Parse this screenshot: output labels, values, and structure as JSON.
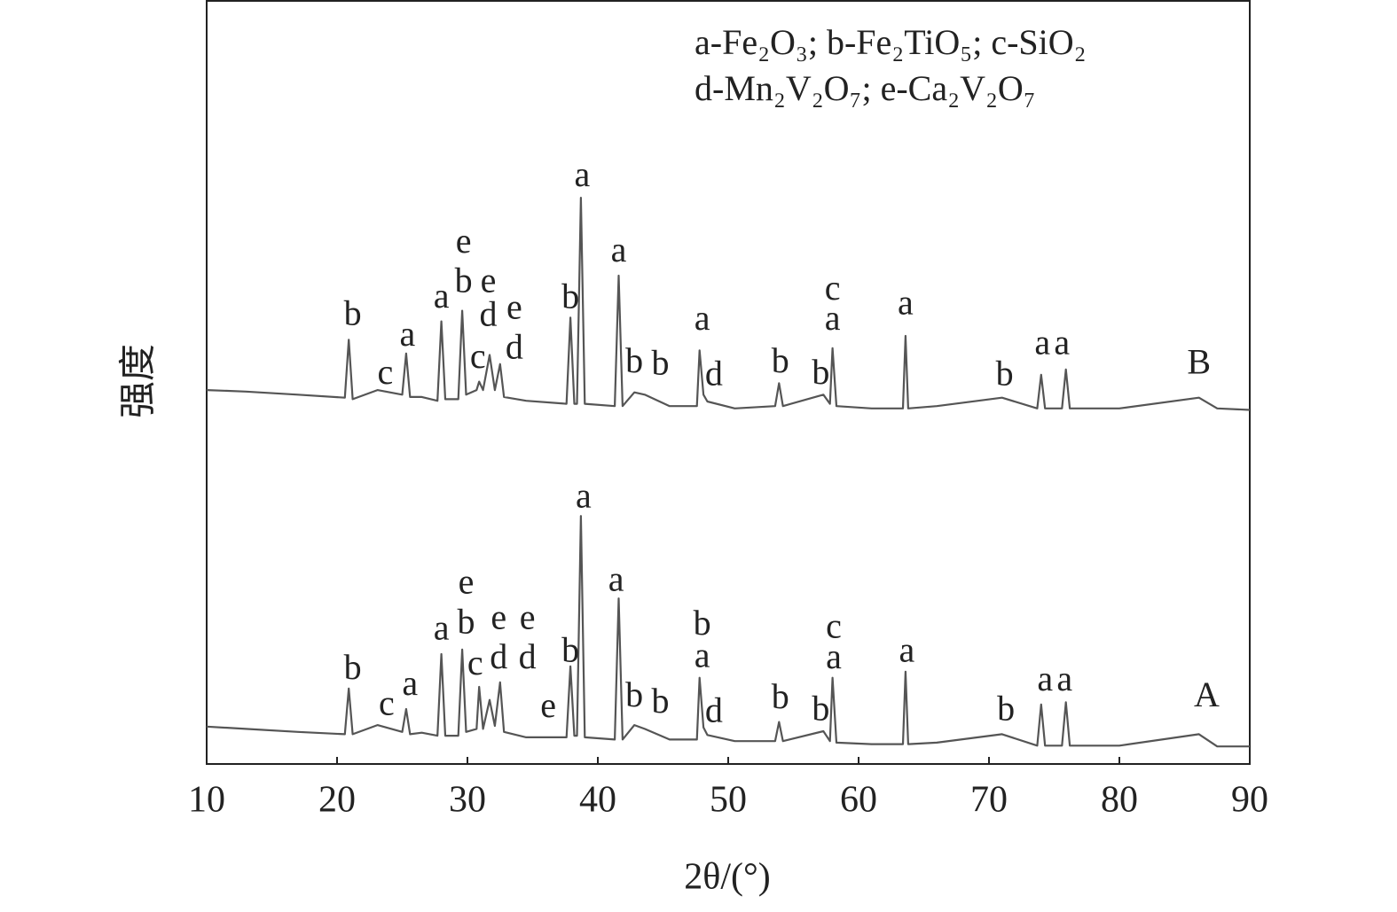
{
  "chart_data": {
    "type": "line",
    "xlabel": "2θ/(°)",
    "ylabel": "强度",
    "legend": [
      "a-Fe₂O₃; b-Fe₂TiO₅; c-SiO₂",
      "d-Mn₂V₂O₇; e-Ca₂V₂O₇"
    ],
    "xlim": [
      10,
      90
    ],
    "xticks": [
      10,
      20,
      30,
      40,
      50,
      60,
      70,
      80,
      90
    ],
    "ylim": [
      0,
      100
    ],
    "x": [
      10,
      13,
      17,
      20.6,
      20.9,
      21.2,
      23.1,
      25.0,
      25.3,
      25.6,
      26.5,
      27.7,
      28.0,
      28.3,
      29.3,
      29.6,
      29.9,
      30.7,
      30.9,
      31.2,
      31.7,
      32.1,
      32.5,
      32.8,
      34.5,
      37.6,
      37.9,
      38.2,
      38.4,
      38.7,
      39.0,
      41.3,
      41.6,
      41.9,
      42.8,
      43.6,
      45.5,
      47.6,
      47.8,
      48.1,
      48.4,
      50.5,
      53.6,
      53.9,
      54.2,
      57.3,
      57.8,
      58.0,
      58.3,
      61,
      63.4,
      63.6,
      63.8,
      66,
      71.0,
      73.7,
      74.0,
      74.3,
      75.6,
      75.9,
      76.2,
      80,
      86.1,
      87.5,
      90
    ],
    "series": [
      {
        "name": "B",
        "color": "#555555",
        "label_pos": [
          86.1,
          52.2
        ],
        "values": [
          49.0,
          48.8,
          48.4,
          48.0,
          55.6,
          47.8,
          49.0,
          48.4,
          53.8,
          48.1,
          48.1,
          47.6,
          58.0,
          47.8,
          47.8,
          59.4,
          48.4,
          49.0,
          50.1,
          49.0,
          53.6,
          49.0,
          52.4,
          48.1,
          47.6,
          47.2,
          58.5,
          47.2,
          47.2,
          74.2,
          47.2,
          46.9,
          64.0,
          46.9,
          48.7,
          48.4,
          46.9,
          46.9,
          54.2,
          48.4,
          47.5,
          46.6,
          46.9,
          49.9,
          46.9,
          48.4,
          47.2,
          54.5,
          46.9,
          46.6,
          46.6,
          56.1,
          46.6,
          46.9,
          48.0,
          46.6,
          51.0,
          46.6,
          46.6,
          51.7,
          46.6,
          46.6,
          48.0,
          46.6,
          46.4
        ]
      },
      {
        "name": "A",
        "color": "#555555",
        "label_pos": [
          86.7,
          8.6
        ],
        "values": [
          4.9,
          4.6,
          4.2,
          3.9,
          9.9,
          3.9,
          5.1,
          4.2,
          7.2,
          3.9,
          4.1,
          3.7,
          14.4,
          3.7,
          3.7,
          15.0,
          4.2,
          4.6,
          10.1,
          4.6,
          8.4,
          5.0,
          10.7,
          4.2,
          3.5,
          3.5,
          12.8,
          3.7,
          3.7,
          32.5,
          3.5,
          3.2,
          21.7,
          3.2,
          5.1,
          4.6,
          3.2,
          3.2,
          11.3,
          4.8,
          3.8,
          3.0,
          3.0,
          5.5,
          3.0,
          4.3,
          3.0,
          11.3,
          2.8,
          2.6,
          2.6,
          12.1,
          2.6,
          2.8,
          3.9,
          2.4,
          7.8,
          2.4,
          2.4,
          8.1,
          2.4,
          2.4,
          3.9,
          2.3,
          2.3
        ]
      }
    ],
    "annotations": [
      {
        "text": "b",
        "x": 21.2,
        "y": 58.6
      },
      {
        "text": "c",
        "x": 23.7,
        "y": 50.9
      },
      {
        "text": "a",
        "x": 25.4,
        "y": 55.9
      },
      {
        "text": "a",
        "x": 28.0,
        "y": 60.9
      },
      {
        "text": "e",
        "x": 29.7,
        "y": 68.1
      },
      {
        "text": "b",
        "x": 29.7,
        "y": 62.9
      },
      {
        "text": "e",
        "x": 31.6,
        "y": 62.9
      },
      {
        "text": "c",
        "x": 30.8,
        "y": 53.0
      },
      {
        "text": "d",
        "x": 31.6,
        "y": 58.5
      },
      {
        "text": "e",
        "x": 33.6,
        "y": 59.4
      },
      {
        "text": "d",
        "x": 33.6,
        "y": 54.2
      },
      {
        "text": "b",
        "x": 37.9,
        "y": 60.8
      },
      {
        "text": "a",
        "x": 38.8,
        "y": 76.8
      },
      {
        "text": "a",
        "x": 41.6,
        "y": 66.9
      },
      {
        "text": "b",
        "x": 42.8,
        "y": 52.4
      },
      {
        "text": "b",
        "x": 44.8,
        "y": 52.1
      },
      {
        "text": "a",
        "x": 48.0,
        "y": 58.0
      },
      {
        "text": "d",
        "x": 48.9,
        "y": 50.7
      },
      {
        "text": "b",
        "x": 54.0,
        "y": 52.4
      },
      {
        "text": "b",
        "x": 57.1,
        "y": 50.9
      },
      {
        "text": "c",
        "x": 58.0,
        "y": 61.9
      },
      {
        "text": "a",
        "x": 58.0,
        "y": 58.0
      },
      {
        "text": "a",
        "x": 63.6,
        "y": 60.0
      },
      {
        "text": "b",
        "x": 71.2,
        "y": 50.7
      },
      {
        "text": "a",
        "x": 74.1,
        "y": 54.8
      },
      {
        "text": "a",
        "x": 75.6,
        "y": 54.8
      },
      {
        "text": "b",
        "x": 21.2,
        "y": 12.2
      },
      {
        "text": "c",
        "x": 23.8,
        "y": 7.5
      },
      {
        "text": "a",
        "x": 25.6,
        "y": 10.1
      },
      {
        "text": "a",
        "x": 28.0,
        "y": 17.4
      },
      {
        "text": "e",
        "x": 29.9,
        "y": 23.4
      },
      {
        "text": "b",
        "x": 29.9,
        "y": 18.2
      },
      {
        "text": "c",
        "x": 30.6,
        "y": 12.8
      },
      {
        "text": "e",
        "x": 32.4,
        "y": 18.8
      },
      {
        "text": "d",
        "x": 32.4,
        "y": 13.6
      },
      {
        "text": "e",
        "x": 34.6,
        "y": 18.8
      },
      {
        "text": "d",
        "x": 34.6,
        "y": 13.6
      },
      {
        "text": "e",
        "x": 36.2,
        "y": 7.2
      },
      {
        "text": "b",
        "x": 37.9,
        "y": 14.5
      },
      {
        "text": "a",
        "x": 38.9,
        "y": 34.7
      },
      {
        "text": "a",
        "x": 41.4,
        "y": 23.8
      },
      {
        "text": "b",
        "x": 42.8,
        "y": 8.6
      },
      {
        "text": "b",
        "x": 44.8,
        "y": 7.8
      },
      {
        "text": "b",
        "x": 48.0,
        "y": 18.0
      },
      {
        "text": "a",
        "x": 48.0,
        "y": 13.8
      },
      {
        "text": "d",
        "x": 48.9,
        "y": 6.6
      },
      {
        "text": "b",
        "x": 54.0,
        "y": 8.4
      },
      {
        "text": "b",
        "x": 57.1,
        "y": 6.8
      },
      {
        "text": "c",
        "x": 58.1,
        "y": 17.6
      },
      {
        "text": "a",
        "x": 58.1,
        "y": 13.6
      },
      {
        "text": "a",
        "x": 63.7,
        "y": 14.5
      },
      {
        "text": "b",
        "x": 71.3,
        "y": 6.8
      },
      {
        "text": "a",
        "x": 74.3,
        "y": 10.7
      },
      {
        "text": "a",
        "x": 75.8,
        "y": 10.7
      }
    ]
  }
}
